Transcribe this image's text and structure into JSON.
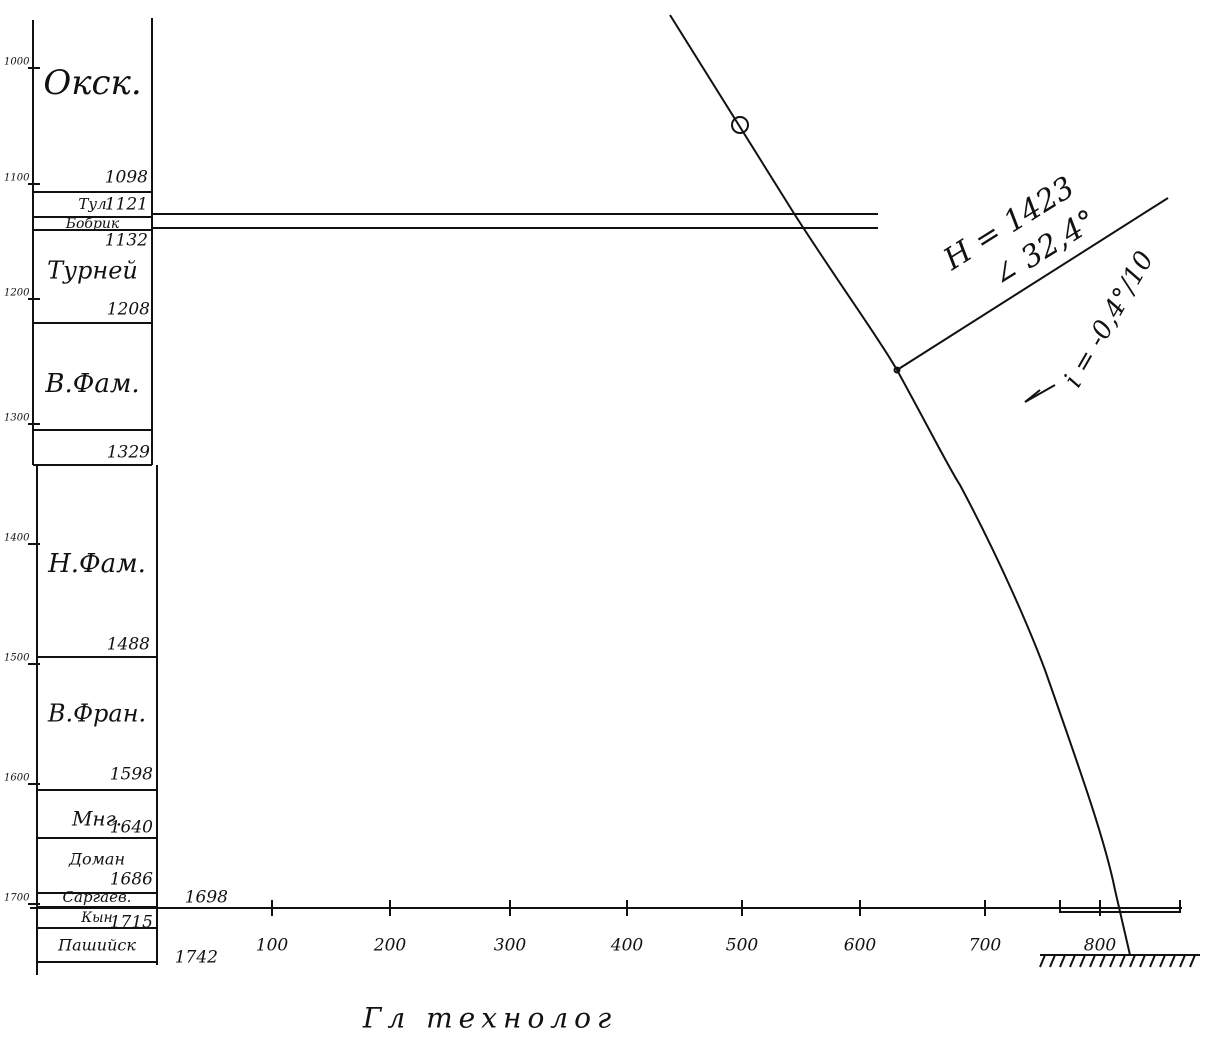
{
  "depth_scale": [
    "1000",
    "1100",
    "1200",
    "1300",
    "1400",
    "1500",
    "1600",
    "1700"
  ],
  "formations": [
    {
      "name": "Окск.",
      "bottom": "1098"
    },
    {
      "name": "Тул",
      "bottom": "1121"
    },
    {
      "name": "Бобрик",
      "bottom": "1132"
    },
    {
      "name": "Турней",
      "bottom": "1208"
    },
    {
      "name": "В.Фам.",
      "bottom": "1329"
    },
    {
      "name": "Н.Фам.",
      "bottom": "1488"
    },
    {
      "name": "В.Фран.",
      "bottom": "1598"
    },
    {
      "name": "Мнг.",
      "bottom": "1640"
    },
    {
      "name": "Доман",
      "bottom": "1686"
    },
    {
      "name": "Саргаев.",
      "bottom": "1698"
    },
    {
      "name": "Кын",
      "bottom": "1715"
    },
    {
      "name": "Пашийск",
      "bottom": "1742"
    }
  ],
  "x_axis": [
    "100",
    "200",
    "300",
    "400",
    "500",
    "600",
    "700",
    "800"
  ],
  "annotations": {
    "depth": "H = 1423",
    "angle": "∠ 32,4°",
    "intensity": "i = -0,4°/10",
    "signature": "Гл технолог"
  }
}
